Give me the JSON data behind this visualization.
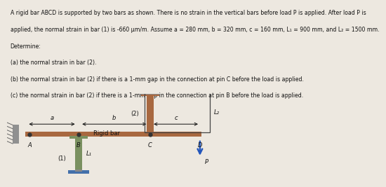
{
  "bg_color": "#ede8e0",
  "text_color": "#111111",
  "title_lines": [
    "A rigid bar ABCD is supported by two bars as shown. There is no strain in the vertical bars before load P is applied. After load P is",
    "applied, the normal strain in bar (1) is -660 μm/m. Assume a = 280 mm, b = 320 mm, c = 160 mm, L₁ = 900 mm, and L₂ = 1500 mm.",
    "Determine:",
    "(a) the normal strain in bar (2).",
    "(b) the normal strain in bar (2) if there is a 1-mm gap in the connection at pin C before the load is applied.",
    "(c) the normal strain in bar (2) if there is a 1-mm gap in the connection at pin B before the load is applied."
  ],
  "bar_color": "#a86840",
  "bar1_color": "#7a9060",
  "wall_color": "#7a8090",
  "base_color": "#4470aa",
  "dim_color": "#111111",
  "box_color": "#333333",
  "arrow_color": "#2255bb"
}
